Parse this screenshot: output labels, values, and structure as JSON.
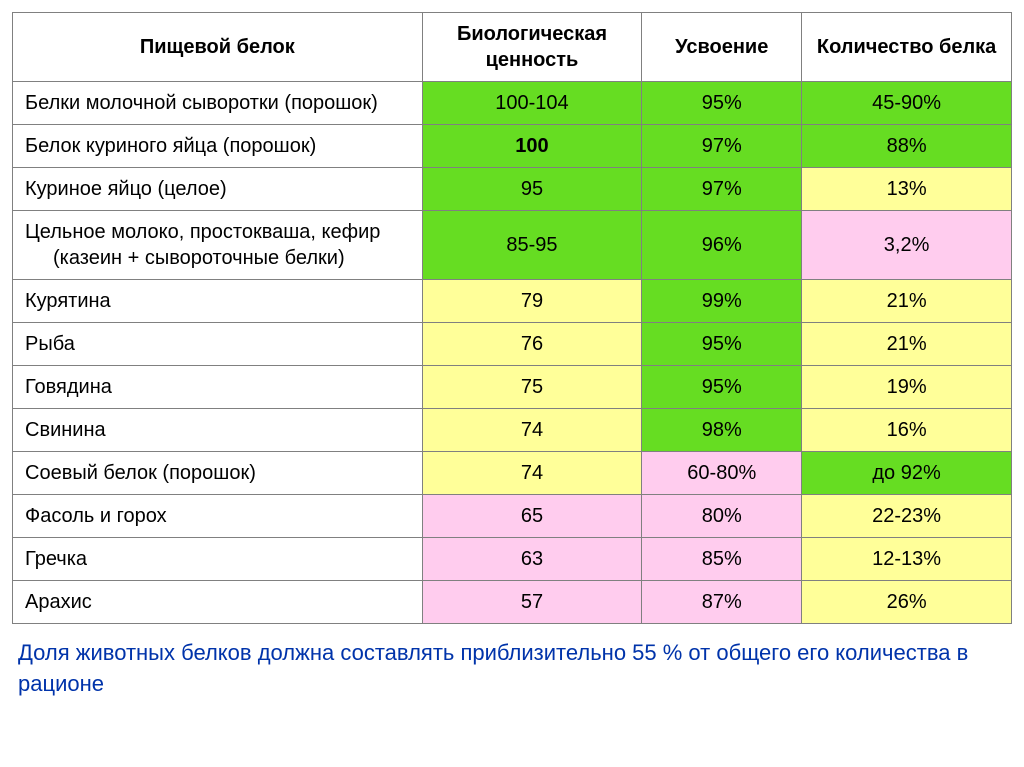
{
  "colors": {
    "green": "#66dd22",
    "yellow": "#ffff99",
    "pink": "#ffccee",
    "white": "#ffffff"
  },
  "columns": [
    "Пищевой белок",
    "Биологическая ценность",
    "Усвоение",
    "Количество белка"
  ],
  "rows": [
    {
      "label": "Белки молочной сыворотки (порошок)",
      "indent": true,
      "cells": [
        {
          "v": "100-104",
          "c": "green"
        },
        {
          "v": "95%",
          "c": "green"
        },
        {
          "v": "45-90%",
          "c": "green"
        }
      ]
    },
    {
      "label": "Белок куриного яйца (порошок)",
      "cells": [
        {
          "v": "100",
          "c": "green",
          "bold": true
        },
        {
          "v": "97%",
          "c": "green"
        },
        {
          "v": "88%",
          "c": "green"
        }
      ]
    },
    {
      "label": "Куриное яйцо (целое)",
      "cells": [
        {
          "v": "95",
          "c": "green"
        },
        {
          "v": "97%",
          "c": "green"
        },
        {
          "v": "13%",
          "c": "yellow"
        }
      ]
    },
    {
      "label": "Цельное молоко, простокваша, кефир (казеин + сывороточные белки)",
      "indent": true,
      "cells": [
        {
          "v": "85-95",
          "c": "green"
        },
        {
          "v": "96%",
          "c": "green"
        },
        {
          "v": "3,2%",
          "c": "pink"
        }
      ]
    },
    {
      "label": "Курятина",
      "cells": [
        {
          "v": "79",
          "c": "yellow"
        },
        {
          "v": "99%",
          "c": "green"
        },
        {
          "v": "21%",
          "c": "yellow"
        }
      ]
    },
    {
      "label": "Рыба",
      "cells": [
        {
          "v": "76",
          "c": "yellow"
        },
        {
          "v": "95%",
          "c": "green"
        },
        {
          "v": "21%",
          "c": "yellow"
        }
      ]
    },
    {
      "label": "Говядина",
      "cells": [
        {
          "v": "75",
          "c": "yellow"
        },
        {
          "v": "95%",
          "c": "green"
        },
        {
          "v": "19%",
          "c": "yellow"
        }
      ]
    },
    {
      "label": "Свинина",
      "cells": [
        {
          "v": "74",
          "c": "yellow"
        },
        {
          "v": "98%",
          "c": "green"
        },
        {
          "v": "16%",
          "c": "yellow"
        }
      ]
    },
    {
      "label": "Соевый белок (порошок)",
      "cells": [
        {
          "v": "74",
          "c": "yellow"
        },
        {
          "v": "60-80%",
          "c": "pink"
        },
        {
          "v": "до 92%",
          "c": "green"
        }
      ]
    },
    {
      "label": "Фасоль и горох",
      "cells": [
        {
          "v": "65",
          "c": "pink"
        },
        {
          "v": "80%",
          "c": "pink"
        },
        {
          "v": "22-23%",
          "c": "yellow"
        }
      ]
    },
    {
      "label": "Гречка",
      "cells": [
        {
          "v": "63",
          "c": "pink"
        },
        {
          "v": "85%",
          "c": "pink"
        },
        {
          "v": "12-13%",
          "c": "yellow"
        }
      ]
    },
    {
      "label": "Арахис",
      "cells": [
        {
          "v": "57",
          "c": "pink"
        },
        {
          "v": "87%",
          "c": "pink"
        },
        {
          "v": "26%",
          "c": "yellow"
        }
      ]
    }
  ],
  "footnote": "Доля животных белков должна составлять приблизительно 55 % от общего его количества в рационе"
}
